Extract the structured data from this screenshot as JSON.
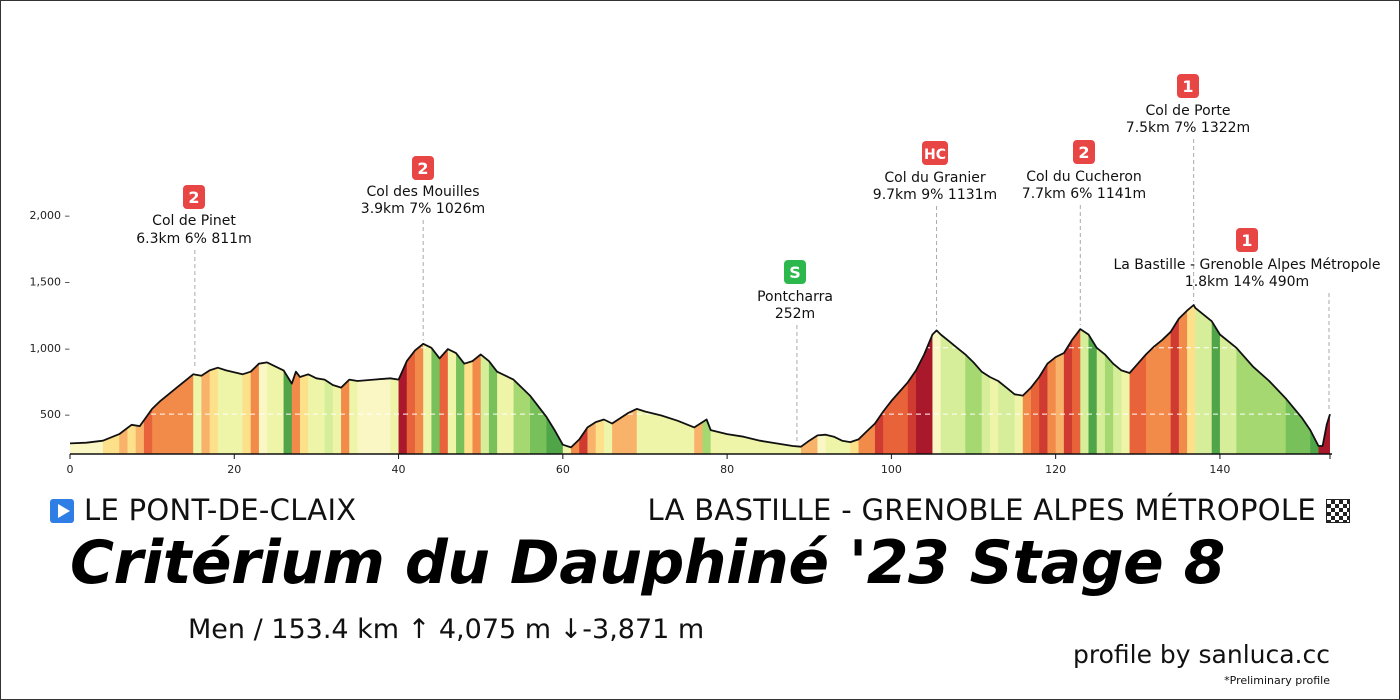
{
  "chart_data": {
    "type": "area",
    "title": "Critérium du Dauphiné '23 Stage 8",
    "xlabel": "",
    "ylabel": "",
    "xlim": [
      0,
      153.4
    ],
    "ylim": [
      200,
      2000
    ],
    "x_ticks": [
      "0",
      "20",
      "40",
      "60",
      "80",
      "100",
      "120",
      "140"
    ],
    "x_tick_values": [
      0,
      20,
      40,
      60,
      80,
      100,
      120,
      140
    ],
    "y_ticks": [
      "500 –",
      "1,000 –",
      "1,500 –",
      "2,000 –"
    ],
    "y_tick_values": [
      500,
      1000,
      1500,
      2000
    ],
    "profile": [
      [
        0,
        280
      ],
      [
        2,
        285
      ],
      [
        4,
        300
      ],
      [
        6,
        350
      ],
      [
        7.5,
        420
      ],
      [
        8.5,
        410
      ],
      [
        10,
        540
      ],
      [
        11,
        600
      ],
      [
        13,
        700
      ],
      [
        15,
        800
      ],
      [
        16,
        790
      ],
      [
        17,
        830
      ],
      [
        18,
        850
      ],
      [
        19,
        830
      ],
      [
        21,
        800
      ],
      [
        22,
        820
      ],
      [
        23,
        880
      ],
      [
        24,
        890
      ],
      [
        25,
        860
      ],
      [
        26,
        830
      ],
      [
        27,
        730
      ],
      [
        27.5,
        820
      ],
      [
        28,
        780
      ],
      [
        29,
        800
      ],
      [
        30,
        770
      ],
      [
        31,
        760
      ],
      [
        32,
        720
      ],
      [
        33,
        700
      ],
      [
        34,
        760
      ],
      [
        35,
        750
      ],
      [
        37,
        760
      ],
      [
        39,
        770
      ],
      [
        40,
        760
      ],
      [
        41,
        900
      ],
      [
        42,
        980
      ],
      [
        43,
        1030
      ],
      [
        44,
        1000
      ],
      [
        45,
        920
      ],
      [
        46,
        990
      ],
      [
        47,
        960
      ],
      [
        48,
        880
      ],
      [
        49,
        900
      ],
      [
        50,
        950
      ],
      [
        51,
        900
      ],
      [
        52,
        820
      ],
      [
        54,
        760
      ],
      [
        56,
        640
      ],
      [
        58,
        480
      ],
      [
        59,
        380
      ],
      [
        60,
        270
      ],
      [
        61,
        250
      ],
      [
        62,
        310
      ],
      [
        63,
        400
      ],
      [
        64,
        440
      ],
      [
        65,
        460
      ],
      [
        66,
        430
      ],
      [
        67,
        470
      ],
      [
        68,
        510
      ],
      [
        69,
        540
      ],
      [
        70,
        520
      ],
      [
        72,
        490
      ],
      [
        74,
        450
      ],
      [
        76,
        400
      ],
      [
        77.5,
        460
      ],
      [
        78,
        380
      ],
      [
        80,
        350
      ],
      [
        82,
        330
      ],
      [
        84,
        300
      ],
      [
        86,
        280
      ],
      [
        88,
        260
      ],
      [
        89,
        255
      ],
      [
        90,
        300
      ],
      [
        91,
        340
      ],
      [
        92,
        345
      ],
      [
        93,
        330
      ],
      [
        94,
        300
      ],
      [
        95,
        290
      ],
      [
        96,
        310
      ],
      [
        97,
        370
      ],
      [
        98,
        430
      ],
      [
        99,
        520
      ],
      [
        100,
        600
      ],
      [
        101,
        670
      ],
      [
        102,
        740
      ],
      [
        103,
        830
      ],
      [
        104,
        950
      ],
      [
        105,
        1100
      ],
      [
        105.5,
        1131
      ],
      [
        106,
        1100
      ],
      [
        107,
        1050
      ],
      [
        108,
        1000
      ],
      [
        109,
        950
      ],
      [
        110,
        890
      ],
      [
        111,
        820
      ],
      [
        112,
        780
      ],
      [
        113,
        750
      ],
      [
        114,
        700
      ],
      [
        115,
        650
      ],
      [
        116,
        640
      ],
      [
        117,
        700
      ],
      [
        118,
        780
      ],
      [
        119,
        880
      ],
      [
        120,
        930
      ],
      [
        121,
        960
      ],
      [
        122,
        1060
      ],
      [
        123,
        1141
      ],
      [
        124,
        1100
      ],
      [
        125,
        1000
      ],
      [
        126,
        950
      ],
      [
        127,
        880
      ],
      [
        128,
        830
      ],
      [
        129,
        810
      ],
      [
        130,
        880
      ],
      [
        131,
        950
      ],
      [
        132,
        1010
      ],
      [
        133,
        1060
      ],
      [
        134,
        1120
      ],
      [
        135,
        1220
      ],
      [
        136,
        1280
      ],
      [
        136.8,
        1322
      ],
      [
        137,
        1300
      ],
      [
        138,
        1250
      ],
      [
        139,
        1200
      ],
      [
        140,
        1100
      ],
      [
        142,
        1000
      ],
      [
        144,
        860
      ],
      [
        146,
        750
      ],
      [
        148,
        620
      ],
      [
        150,
        470
      ],
      [
        151,
        380
      ],
      [
        152,
        260
      ],
      [
        152.5,
        260
      ],
      [
        153,
        420
      ],
      [
        153.4,
        500
      ]
    ],
    "gradient_colors": [
      "#fbf7c4",
      "#eef5a8",
      "#fde08a",
      "#f9b26a",
      "#f28a4a",
      "#e8633a",
      "#cf3b30",
      "#a9192b",
      "#d6ed9a",
      "#a6d872",
      "#78c05a",
      "#4fa548"
    ],
    "climbs": [
      {
        "cat": "2",
        "name": "Col de Pinet",
        "info": "6.3km 6% 811m",
        "km": 15.2,
        "elev": 811,
        "color": "#e84545"
      },
      {
        "cat": "2",
        "name": "Col des Mouilles",
        "info": "3.9km 7% 1026m",
        "km": 43.0,
        "elev": 1026,
        "color": "#e84545"
      },
      {
        "cat": "S",
        "name": "Pontcharra",
        "info": "252m",
        "km": 88.5,
        "elev": 252,
        "color": "#2db84d"
      },
      {
        "cat": "HC",
        "name": "Col du Granier",
        "info": "9.7km 9% 1131m",
        "km": 105.5,
        "elev": 1131,
        "color": "#e84545"
      },
      {
        "cat": "2",
        "name": "Col du Cucheron",
        "info": "7.7km 6% 1141m",
        "km": 123.0,
        "elev": 1141,
        "color": "#e84545"
      },
      {
        "cat": "1",
        "name": "Col de Porte",
        "info": "7.5km 7% 1322m",
        "km": 136.8,
        "elev": 1322,
        "color": "#e84545"
      },
      {
        "cat": "1",
        "name": "La Bastille - Grenoble Alpes Métropole",
        "info": "1.8km 14% 490m",
        "km": 153.4,
        "elev": 490,
        "color": "#e84545"
      }
    ]
  },
  "start": "LE PONT-DE-CLAIX",
  "finish": "LA BASTILLE - GRENOBLE ALPES MÉTROPOLE",
  "title": "Critérium du Dauphiné '23 Stage 8",
  "stats": "Men  /  153.4 km   ↑ 4,075 m   ↓-3,871 m",
  "credit": "profile by sanluca.cc",
  "note": "*Preliminary profile"
}
